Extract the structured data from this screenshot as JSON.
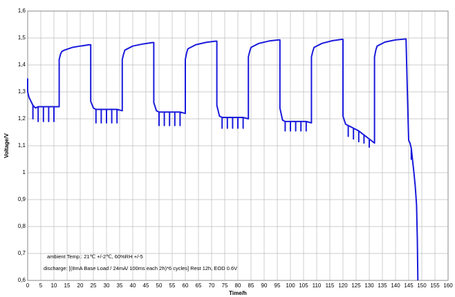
{
  "chart_data": {
    "type": "line",
    "x_label": "Time/h",
    "y_label": "Voltage/V",
    "annotations": [
      "ambient Temp.: 21℃ +/-2℃, 60%RH +/-5",
      "discharge: [(8mA Base Load / 24mA/ 100ms each 2h)*6 cycles] Rest 12h, EOD 0.6V"
    ],
    "color": "#1a1adc",
    "grid": true,
    "xlim": [
      0,
      160
    ],
    "xticks": [
      0,
      5,
      10,
      15,
      20,
      25,
      30,
      35,
      40,
      45,
      50,
      55,
      60,
      65,
      70,
      75,
      80,
      85,
      90,
      95,
      100,
      105,
      110,
      115,
      120,
      125,
      130,
      135,
      140,
      145,
      150,
      155,
      160
    ],
    "ylim": [
      0.6,
      1.6
    ],
    "yticks": [
      {
        "value": 0.6,
        "label": "0,6"
      },
      {
        "value": 0.7,
        "label": "0,7"
      },
      {
        "value": 0.8,
        "label": "0,8"
      },
      {
        "value": 0.9,
        "label": "0,9"
      },
      {
        "value": 1,
        "label": "1"
      },
      {
        "value": 1.1,
        "label": "1,1"
      },
      {
        "value": 1.2,
        "label": "1,2"
      },
      {
        "value": 1.3,
        "label": "1,3"
      },
      {
        "value": 1.4,
        "label": "1,4"
      },
      {
        "value": 1.5,
        "label": "1,5"
      },
      {
        "value": 1.6,
        "label": "1,6"
      }
    ],
    "x": [
      0,
      0,
      0.5,
      1,
      2,
      2,
      2,
      3,
      4,
      4,
      4,
      5,
      6,
      6,
      6,
      8,
      8,
      8,
      10,
      10,
      10,
      12,
      12,
      12.5,
      13,
      14,
      17,
      20,
      23.5,
      24,
      24,
      25,
      26,
      26,
      26,
      28,
      28,
      28,
      30,
      30,
      30,
      32,
      32,
      32,
      34,
      34,
      34,
      36,
      36,
      36.5,
      37,
      40,
      44,
      47.5,
      48,
      48,
      49,
      50,
      50,
      50,
      52,
      52,
      52,
      54,
      54,
      54,
      56,
      56,
      56,
      58,
      58,
      58,
      60,
      60,
      60.5,
      61,
      64,
      68,
      71.5,
      72,
      72,
      73,
      74,
      74,
      74,
      76,
      76,
      76,
      78,
      78,
      78,
      80,
      80,
      80,
      82,
      82,
      82,
      84,
      84,
      84.5,
      85,
      88,
      92,
      95.5,
      96,
      96,
      97,
      98,
      98,
      98,
      100,
      100,
      100,
      102,
      102,
      102,
      104,
      104,
      104,
      106,
      106,
      106,
      108,
      108,
      108.5,
      109,
      112,
      116,
      119.5,
      120,
      120,
      121,
      122,
      122,
      122,
      124,
      124,
      124,
      126,
      126,
      126,
      128,
      128,
      128,
      130,
      130,
      130,
      132,
      132,
      132.5,
      133,
      136,
      140,
      143.5,
      144,
      144.5,
      145,
      145.5,
      146,
      146,
      146,
      147,
      147.5,
      148,
      148.3,
      148.5
    ],
    "values": [
      1.35,
      1.3,
      1.28,
      1.27,
      1.25,
      1.2,
      1.25,
      1.24,
      1.245,
      1.19,
      1.245,
      1.245,
      1.245,
      1.19,
      1.245,
      1.245,
      1.19,
      1.245,
      1.245,
      1.19,
      1.245,
      1.245,
      1.42,
      1.44,
      1.45,
      1.455,
      1.465,
      1.47,
      1.475,
      1.475,
      1.265,
      1.24,
      1.235,
      1.185,
      1.235,
      1.235,
      1.185,
      1.235,
      1.235,
      1.185,
      1.235,
      1.235,
      1.185,
      1.235,
      1.235,
      1.185,
      1.235,
      1.23,
      1.42,
      1.44,
      1.455,
      1.47,
      1.478,
      1.483,
      1.483,
      1.26,
      1.23,
      1.225,
      1.175,
      1.225,
      1.225,
      1.175,
      1.225,
      1.225,
      1.175,
      1.225,
      1.225,
      1.175,
      1.225,
      1.225,
      1.175,
      1.225,
      1.22,
      1.42,
      1.445,
      1.46,
      1.475,
      1.484,
      1.488,
      1.488,
      1.25,
      1.21,
      1.205,
      1.165,
      1.205,
      1.205,
      1.165,
      1.205,
      1.205,
      1.165,
      1.205,
      1.205,
      1.165,
      1.205,
      1.205,
      1.165,
      1.205,
      1.2,
      1.43,
      1.45,
      1.465,
      1.48,
      1.489,
      1.493,
      1.493,
      1.24,
      1.195,
      1.19,
      1.155,
      1.19,
      1.19,
      1.155,
      1.19,
      1.19,
      1.155,
      1.19,
      1.19,
      1.155,
      1.19,
      1.19,
      1.155,
      1.19,
      1.185,
      1.43,
      1.45,
      1.465,
      1.48,
      1.49,
      1.495,
      1.495,
      1.21,
      1.18,
      1.175,
      1.135,
      1.175,
      1.165,
      1.125,
      1.165,
      1.155,
      1.115,
      1.155,
      1.14,
      1.11,
      1.14,
      1.125,
      1.095,
      1.125,
      1.11,
      1.43,
      1.455,
      1.47,
      1.485,
      1.493,
      1.496,
      1.496,
      1.3,
      1.12,
      1.11,
      1.09,
      1.05,
      1.09,
      1.0,
      0.95,
      0.88,
      0.75,
      0.6
    ]
  }
}
